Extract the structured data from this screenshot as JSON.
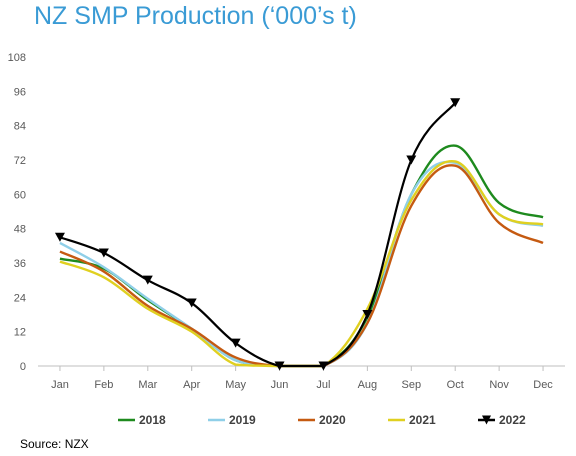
{
  "title": "NZ SMP Production (‘000’s t)",
  "source": "Source: NZX",
  "chart_data": {
    "type": "line",
    "title": "NZ SMP Production (‘000’s t)",
    "xlabel": "",
    "ylabel": "",
    "categories": [
      "Jan",
      "Feb",
      "Mar",
      "Apr",
      "May",
      "Jun",
      "Jul",
      "Aug",
      "Sep",
      "Oct",
      "Nov",
      "Dec"
    ],
    "yticks": [
      0,
      12,
      24,
      36,
      48,
      60,
      72,
      84,
      96,
      108
    ],
    "ylim": [
      0,
      108
    ],
    "grid": false,
    "legend": "bottom",
    "series": [
      {
        "name": "2018",
        "color": "#1e8a1e",
        "marker": "none",
        "values": [
          37.5,
          34,
          23,
          13,
          2,
          0,
          0,
          17,
          60,
          77,
          57,
          52
        ]
      },
      {
        "name": "2019",
        "color": "#8fcfe8",
        "marker": "none",
        "values": [
          43,
          34.5,
          23.5,
          13,
          2,
          0,
          0,
          15,
          60,
          71,
          53,
          49
        ]
      },
      {
        "name": "2020",
        "color": "#c55a11",
        "marker": "none",
        "values": [
          40,
          33,
          21,
          13,
          3,
          0,
          0,
          15,
          56,
          70,
          50,
          43
        ]
      },
      {
        "name": "2021",
        "color": "#e0d020",
        "marker": "none",
        "values": [
          36.5,
          31,
          20,
          12,
          0.5,
          0,
          0,
          20,
          58,
          71.5,
          53,
          49.5
        ]
      },
      {
        "name": "2022",
        "color": "#000000",
        "marker": "triangle-down",
        "values": [
          45,
          39.5,
          30,
          22,
          8,
          0,
          0,
          18,
          72,
          92,
          null,
          null
        ]
      }
    ]
  }
}
